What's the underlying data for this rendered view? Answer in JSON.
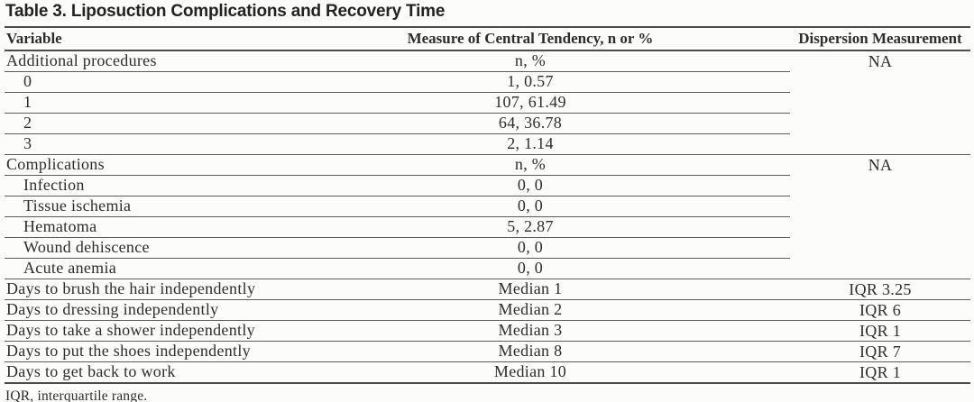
{
  "page": {
    "title": "Table 3. Liposuction Complications and Recovery Time",
    "footnote": "IQR, interquartile range."
  },
  "table": {
    "columns": [
      "Variable",
      "Measure of Central Tendency, n or %",
      "Dispersion Measurement"
    ],
    "rows": [
      {
        "variable": "Additional procedures",
        "indent": false,
        "measure": "n, %",
        "dispersion": "NA",
        "dispersion_rowspan": 5
      },
      {
        "variable": "0",
        "indent": true,
        "measure": "1, 0.57"
      },
      {
        "variable": "1",
        "indent": true,
        "measure": "107, 61.49"
      },
      {
        "variable": "2",
        "indent": true,
        "measure": "64, 36.78"
      },
      {
        "variable": "3",
        "indent": true,
        "measure": "2, 1.14"
      },
      {
        "variable": "Complications",
        "indent": false,
        "measure": "n, %",
        "dispersion": "NA",
        "dispersion_rowspan": 6
      },
      {
        "variable": "Infection",
        "indent": true,
        "measure": "0, 0"
      },
      {
        "variable": "Tissue ischemia",
        "indent": true,
        "measure": "0, 0"
      },
      {
        "variable": "Hematoma",
        "indent": true,
        "measure": "5, 2.87"
      },
      {
        "variable": "Wound dehiscence",
        "indent": true,
        "measure": "0, 0"
      },
      {
        "variable": "Acute anemia",
        "indent": true,
        "measure": "0, 0"
      },
      {
        "variable": "Days to brush the hair independently",
        "indent": false,
        "measure": "Median 1",
        "dispersion": "IQR 3.25",
        "dispersion_rowspan": 1
      },
      {
        "variable": "Days to dressing independently",
        "indent": false,
        "measure": "Median 2",
        "dispersion": "IQR 6",
        "dispersion_rowspan": 1
      },
      {
        "variable": "Days to take a shower independently",
        "indent": false,
        "measure": "Median 3",
        "dispersion": "IQR 1",
        "dispersion_rowspan": 1
      },
      {
        "variable": "Days to put the shoes independently",
        "indent": false,
        "measure": "Median 8",
        "dispersion": "IQR 7",
        "dispersion_rowspan": 1
      },
      {
        "variable": "Days to get back to work",
        "indent": false,
        "measure": "Median 10",
        "dispersion": "IQR 1",
        "dispersion_rowspan": 1
      }
    ]
  },
  "colors": {
    "text": "#2d2d2b",
    "title_text": "#222220",
    "rule_thin": "#5c5c5a",
    "rule_thick": "#4b4b49",
    "background": "#fcfcfa"
  }
}
